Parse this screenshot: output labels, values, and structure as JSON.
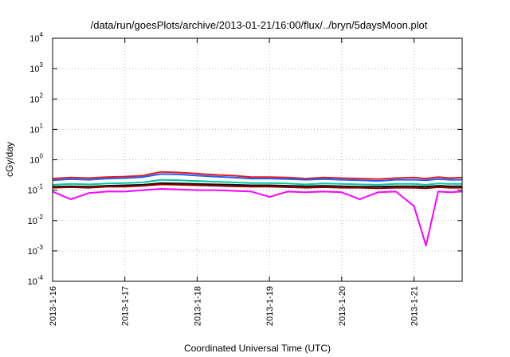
{
  "chart_data": {
    "type": "line",
    "title": "/data/run/goesPlots/archive/2013-01-21/16:00/flux/../bryn/5daysMoon.plot",
    "xlabel": "Coordinated Universal Time (UTC)",
    "ylabel": "cGy/day",
    "yscale": "log",
    "ylim": [
      0.0001,
      10000
    ],
    "xlim": [
      "2013-01-16T00:00",
      "2013-01-21T16:00"
    ],
    "grid": true,
    "legend": "none",
    "x_ticks": [
      {
        "label": "2013-1-16",
        "value": "2013-01-16T00:00"
      },
      {
        "label": "2013-1-17",
        "value": "2013-01-17T00:00"
      },
      {
        "label": "2013-1-18",
        "value": "2013-01-18T00:00"
      },
      {
        "label": "2013-1-19",
        "value": "2013-01-19T00:00"
      },
      {
        "label": "2013-1-20",
        "value": "2013-01-20T00:00"
      },
      {
        "label": "2013-1-21",
        "value": "2013-01-21T00:00"
      }
    ],
    "y_ticks": [
      {
        "base": "10",
        "exp": "-4",
        "value": 0.0001
      },
      {
        "base": "10",
        "exp": "-3",
        "value": 0.001
      },
      {
        "base": "10",
        "exp": "-2",
        "value": 0.01
      },
      {
        "base": "10",
        "exp": "-1",
        "value": 0.1
      },
      {
        "base": "10",
        "exp": "0",
        "value": 1
      },
      {
        "base": "10",
        "exp": "1",
        "value": 10
      },
      {
        "base": "10",
        "exp": "2",
        "value": 100
      },
      {
        "base": "10",
        "exp": "3",
        "value": 1000
      },
      {
        "base": "10",
        "exp": "4",
        "value": 10000
      }
    ],
    "x": [
      "2013-01-16T00:00",
      "2013-01-16T06:00",
      "2013-01-16T12:00",
      "2013-01-16T18:00",
      "2013-01-17T00:00",
      "2013-01-17T06:00",
      "2013-01-17T12:00",
      "2013-01-17T18:00",
      "2013-01-18T00:00",
      "2013-01-18T06:00",
      "2013-01-18T12:00",
      "2013-01-18T18:00",
      "2013-01-19T00:00",
      "2013-01-19T06:00",
      "2013-01-19T12:00",
      "2013-01-19T18:00",
      "2013-01-20T00:00",
      "2013-01-20T06:00",
      "2013-01-20T12:00",
      "2013-01-20T18:00",
      "2013-01-21T00:00",
      "2013-01-21T04:00",
      "2013-01-21T08:00",
      "2013-01-21T12:00",
      "2013-01-21T16:00"
    ],
    "series": [
      {
        "color": "#e41a1c",
        "values": [
          0.24,
          0.26,
          0.25,
          0.27,
          0.28,
          0.3,
          0.4,
          0.38,
          0.35,
          0.32,
          0.3,
          0.27,
          0.27,
          0.26,
          0.24,
          0.26,
          0.25,
          0.24,
          0.23,
          0.25,
          0.26,
          0.24,
          0.27,
          0.25,
          0.26
        ]
      },
      {
        "color": "#1f5fff",
        "values": [
          0.21,
          0.23,
          0.22,
          0.24,
          0.25,
          0.27,
          0.34,
          0.33,
          0.3,
          0.28,
          0.26,
          0.24,
          0.24,
          0.23,
          0.22,
          0.23,
          0.22,
          0.21,
          0.2,
          0.22,
          0.22,
          0.21,
          0.23,
          0.22,
          0.22
        ]
      },
      {
        "color": "#00c8a0",
        "values": [
          0.15,
          0.16,
          0.155,
          0.165,
          0.17,
          0.18,
          0.22,
          0.21,
          0.2,
          0.19,
          0.18,
          0.17,
          0.17,
          0.165,
          0.155,
          0.165,
          0.16,
          0.155,
          0.15,
          0.16,
          0.16,
          0.15,
          0.165,
          0.16,
          0.16
        ]
      },
      {
        "color": "#111111",
        "values": [
          0.13,
          0.135,
          0.13,
          0.14,
          0.145,
          0.15,
          0.17,
          0.165,
          0.16,
          0.155,
          0.15,
          0.145,
          0.145,
          0.14,
          0.135,
          0.14,
          0.135,
          0.13,
          0.13,
          0.135,
          0.135,
          0.13,
          0.14,
          0.135,
          0.135
        ]
      },
      {
        "color": "#8b0000",
        "values": [
          0.12,
          0.125,
          0.12,
          0.13,
          0.13,
          0.14,
          0.155,
          0.15,
          0.145,
          0.14,
          0.135,
          0.13,
          0.13,
          0.125,
          0.12,
          0.125,
          0.12,
          0.12,
          0.115,
          0.12,
          0.12,
          0.115,
          0.125,
          0.12,
          0.12
        ]
      },
      {
        "color": "#ff00ff",
        "values": [
          0.09,
          0.05,
          0.08,
          0.09,
          0.09,
          0.1,
          0.11,
          0.105,
          0.1,
          0.1,
          0.095,
          0.09,
          0.06,
          0.09,
          0.085,
          0.09,
          0.085,
          0.05,
          0.085,
          0.09,
          0.03,
          0.0015,
          0.09,
          0.085,
          0.09
        ]
      }
    ]
  }
}
